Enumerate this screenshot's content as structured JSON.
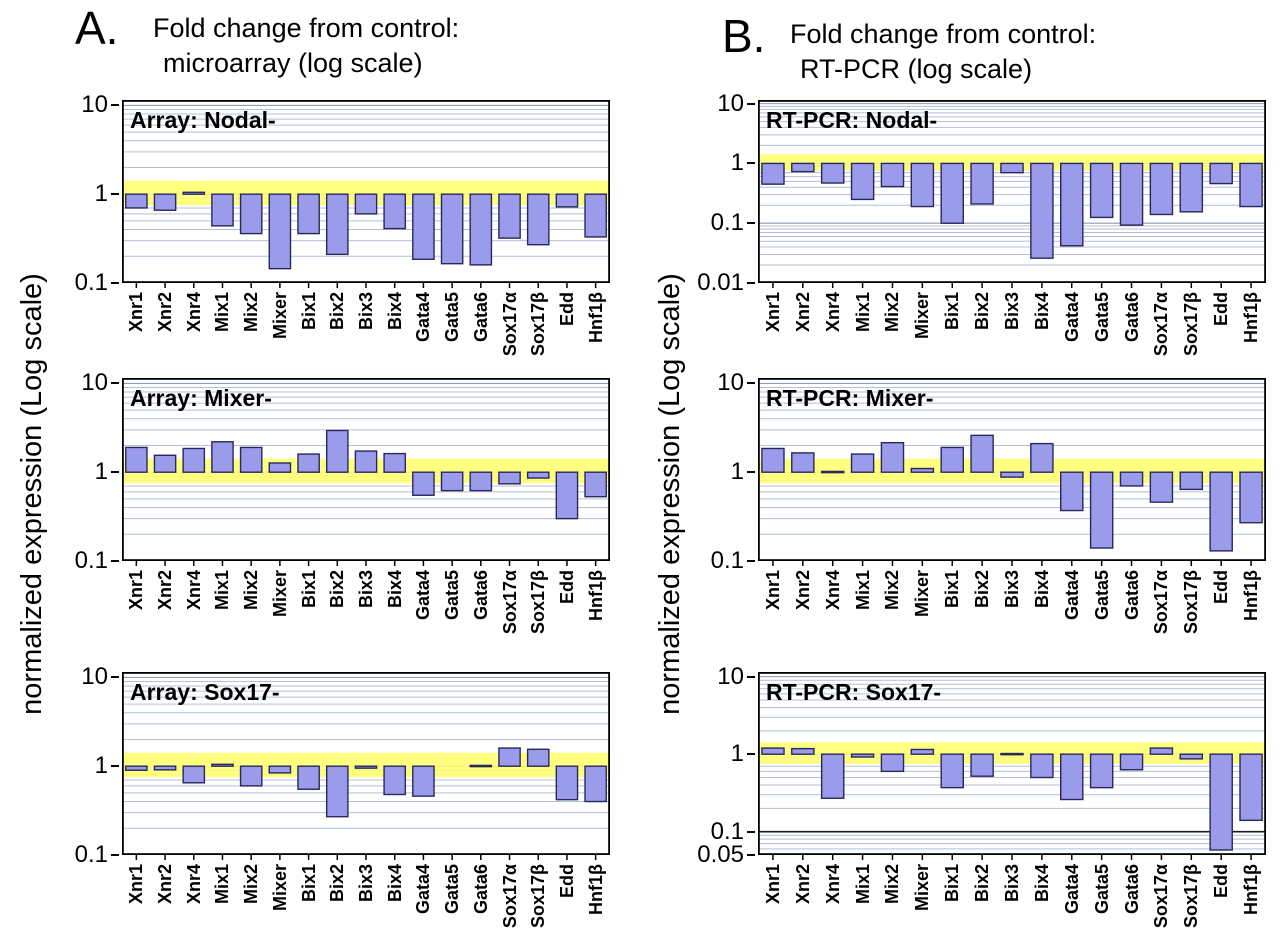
{
  "panel_a": {
    "letter": "A.",
    "header_line1": "Fold change from control:",
    "header_line2": "microarray (log scale)",
    "y_axis_label": "normalized expression (Log scale)"
  },
  "panel_b": {
    "letter": "B.",
    "header_line1": "Fold change from control:",
    "header_line2": "RT-PCR (log scale)",
    "y_axis_label": "normalized expression (Log scale)"
  },
  "colors": {
    "bar_fill": "#9b9bec",
    "bar_border": "#28285a",
    "control_band": "#ffff6e",
    "grid_minor": "#b4bfd4",
    "grid_decade": "#8f9cb3",
    "dark_gridline": "#1a1a1a",
    "frame": "#000000"
  },
  "categories": [
    "Xnr1",
    "Xnr2",
    "Xnr4",
    "Mix1",
    "Mix2",
    "Mixer",
    "Bix1",
    "Bix2",
    "Bix3",
    "Bix4",
    "Gata4",
    "Gata5",
    "Gata6",
    "Sox17α",
    "Sox17β",
    "Edd",
    "Hnf1β"
  ],
  "chart_data": [
    {
      "type": "bar",
      "panel": "A",
      "row": 0,
      "title": "Array: Nodal-",
      "baseline": 1,
      "ylim": [
        0.1,
        11.5
      ],
      "control_band": [
        0.75,
        1.42
      ],
      "yticks": [
        {
          "value": 10,
          "label": "10"
        },
        {
          "value": 1,
          "label": "1"
        },
        {
          "value": 0.1,
          "label": "0.1"
        }
      ],
      "dark_gridlines": [],
      "values": [
        0.7,
        0.66,
        1.05,
        0.44,
        0.36,
        0.145,
        0.36,
        0.21,
        0.6,
        0.41,
        0.185,
        0.165,
        0.16,
        0.32,
        0.27,
        0.72,
        0.33
      ]
    },
    {
      "type": "bar",
      "panel": "A",
      "row": 1,
      "title": "Array: Mixer-",
      "baseline": 1,
      "ylim": [
        0.1,
        11.5
      ],
      "control_band": [
        0.75,
        1.42
      ],
      "yticks": [
        {
          "value": 10,
          "label": "10"
        },
        {
          "value": 1,
          "label": "1"
        },
        {
          "value": 0.1,
          "label": "0.1"
        }
      ],
      "dark_gridlines": [],
      "values": [
        1.9,
        1.55,
        1.85,
        2.2,
        1.9,
        1.27,
        1.6,
        2.95,
        1.73,
        1.62,
        0.55,
        0.62,
        0.62,
        0.74,
        0.86,
        0.3,
        0.53
      ]
    },
    {
      "type": "bar",
      "panel": "A",
      "row": 2,
      "title": "Array: Sox17-",
      "baseline": 1,
      "ylim": [
        0.1,
        11.5
      ],
      "control_band": [
        0.75,
        1.42
      ],
      "yticks": [
        {
          "value": 10,
          "label": "10"
        },
        {
          "value": 1,
          "label": "1"
        },
        {
          "value": 0.1,
          "label": "0.1"
        }
      ],
      "dark_gridlines": [],
      "values": [
        0.9,
        0.91,
        0.65,
        1.05,
        0.6,
        0.84,
        0.55,
        0.27,
        0.95,
        0.48,
        0.46,
        null,
        1.02,
        1.6,
        1.55,
        0.42,
        0.4
      ]
    },
    {
      "type": "bar",
      "panel": "B",
      "row": 0,
      "title": "RT-PCR: Nodal-",
      "baseline": 1,
      "ylim": [
        0.01,
        11.5
      ],
      "control_band": [
        0.75,
        1.42
      ],
      "yticks": [
        {
          "value": 10,
          "label": "10"
        },
        {
          "value": 1,
          "label": "1"
        },
        {
          "value": 0.1,
          "label": "0.1"
        },
        {
          "value": 0.01,
          "label": "0.01"
        }
      ],
      "dark_gridlines": [],
      "values": [
        0.45,
        0.73,
        0.47,
        0.25,
        0.41,
        0.19,
        0.1,
        0.21,
        0.7,
        0.026,
        0.042,
        0.125,
        0.093,
        0.14,
        0.155,
        0.46,
        0.19
      ]
    },
    {
      "type": "bar",
      "panel": "B",
      "row": 1,
      "title": "RT-PCR: Mixer-",
      "baseline": 1,
      "ylim": [
        0.1,
        11.5
      ],
      "control_band": [
        0.75,
        1.42
      ],
      "yticks": [
        {
          "value": 10,
          "label": "10"
        },
        {
          "value": 1,
          "label": "1"
        },
        {
          "value": 0.1,
          "label": "0.1"
        }
      ],
      "dark_gridlines": [],
      "values": [
        1.85,
        1.65,
        1.02,
        1.6,
        2.15,
        1.1,
        1.9,
        2.6,
        0.88,
        2.1,
        0.37,
        0.14,
        0.7,
        0.46,
        0.64,
        0.13,
        0.27
      ]
    },
    {
      "type": "bar",
      "panel": "B",
      "row": 2,
      "title": "RT-PCR: Sox17-",
      "baseline": 1,
      "ylim": [
        0.05,
        11.5
      ],
      "control_band": [
        0.75,
        1.42
      ],
      "yticks": [
        {
          "value": 10,
          "label": "10"
        },
        {
          "value": 1,
          "label": "1"
        },
        {
          "value": 0.1,
          "label": "0.1"
        },
        {
          "value": 0.05,
          "label": "0.05"
        }
      ],
      "dark_gridlines": [
        0.1
      ],
      "values": [
        1.2,
        1.18,
        0.27,
        0.92,
        0.6,
        1.15,
        0.37,
        0.52,
        1.02,
        0.5,
        0.26,
        0.37,
        0.63,
        1.2,
        0.87,
        0.058,
        0.14
      ]
    }
  ]
}
